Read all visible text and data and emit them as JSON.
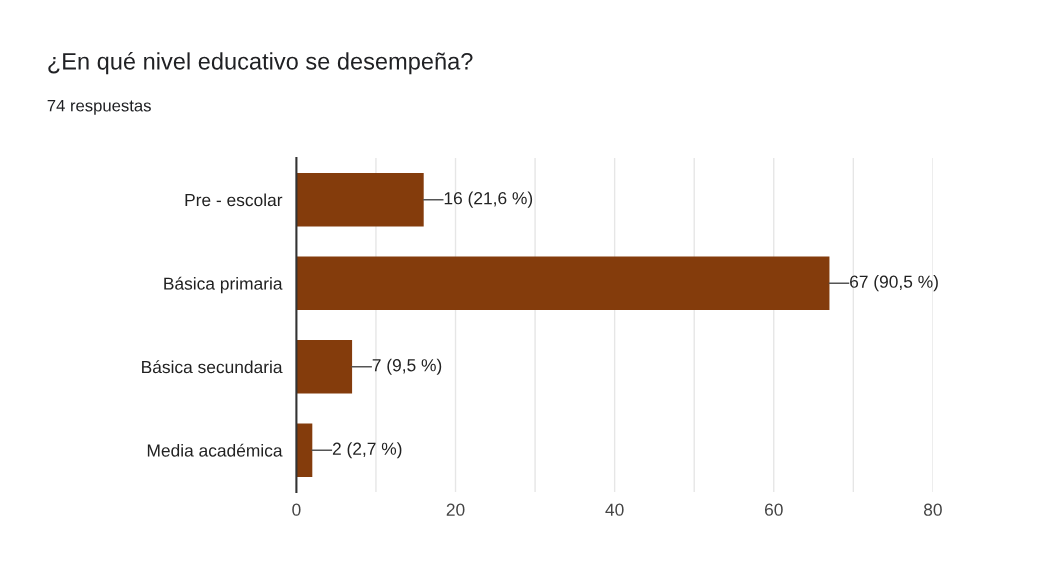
{
  "chart_data": {
    "type": "bar",
    "orientation": "horizontal",
    "title": "¿En qué nivel educativo se desempeña?",
    "subtitle": "74 respuestas",
    "categories": [
      "Pre - escolar",
      "Básica primaria",
      "Básica secundaria",
      "Media académica"
    ],
    "values": [
      16,
      67,
      7,
      2
    ],
    "color": "#843c0c",
    "value_labels": [
      "16 (21,6 %)",
      "67 (90,5 %)",
      "7 (9,5 %)",
      "2 (2,7 %)"
    ],
    "xlim": [
      0,
      80
    ],
    "xticks": [
      0,
      {
        "value": 10,
        "label": null
      },
      20,
      {
        "value": 30,
        "label": null
      },
      40,
      {
        "value": 50,
        "label": null
      },
      60,
      {
        "value": 70,
        "label": null
      },
      80
    ],
    "grid": "x",
    "legend": false
  }
}
